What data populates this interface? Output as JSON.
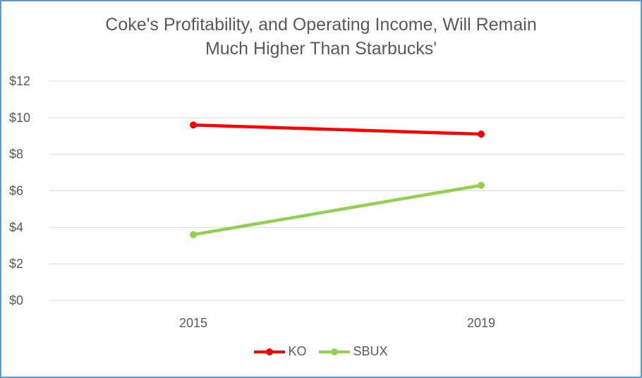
{
  "chart_data": {
    "type": "line",
    "title_lines": [
      "Coke's Profitability, and Operating Income, Will Remain",
      "Much Higher Than Starbucks'"
    ],
    "categories": [
      "2015",
      "2019"
    ],
    "series": [
      {
        "name": "KO",
        "values": [
          9.6,
          9.1
        ],
        "color": "#ff0000"
      },
      {
        "name": "SBUX",
        "values": [
          3.6,
          6.3
        ],
        "color": "#92d050"
      }
    ],
    "ylim": [
      0,
      12
    ],
    "yticks": [
      0,
      2,
      4,
      6,
      8,
      10,
      12
    ],
    "ytick_labels": [
      "$0",
      "$2",
      "$4",
      "$6",
      "$8",
      "$10",
      "$12"
    ],
    "grid": true,
    "legend_position": "bottom"
  }
}
